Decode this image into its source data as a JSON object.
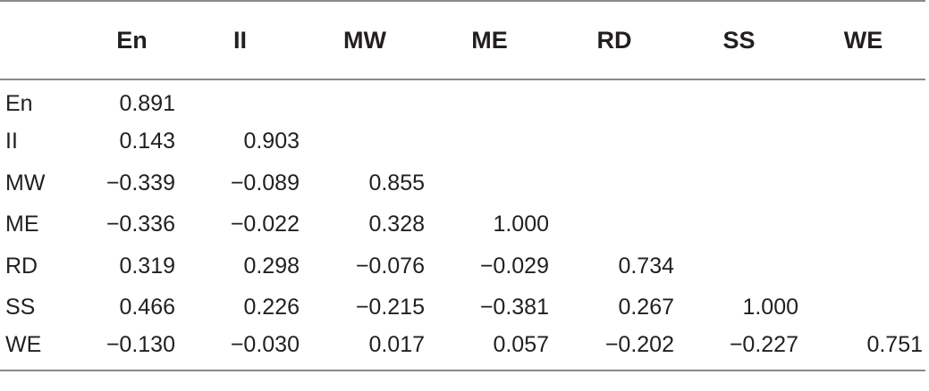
{
  "table": {
    "header": [
      "",
      "En",
      "II",
      "MW",
      "ME",
      "RD",
      "SS",
      "WE"
    ],
    "rows": [
      {
        "label": "En",
        "cells": [
          "0.891",
          "",
          "",
          "",
          "",
          "",
          ""
        ]
      },
      {
        "label": "II",
        "cells": [
          "0.143",
          "0.903",
          "",
          "",
          "",
          "",
          ""
        ]
      },
      {
        "label": "MW",
        "cells": [
          "−0.339",
          "−0.089",
          "0.855",
          "",
          "",
          "",
          ""
        ]
      },
      {
        "label": "ME",
        "cells": [
          "−0.336",
          "−0.022",
          "0.328",
          "1.000",
          "",
          "",
          ""
        ]
      },
      {
        "label": "RD",
        "cells": [
          "0.319",
          "0.298",
          "−0.076",
          "−0.029",
          "0.734",
          "",
          ""
        ]
      },
      {
        "label": "SS",
        "cells": [
          "0.466",
          "0.226",
          "−0.215",
          "−0.381",
          "0.267",
          "1.000",
          ""
        ]
      },
      {
        "label": "WE",
        "cells": [
          "−0.130",
          "−0.030",
          "0.017",
          "0.057",
          "−0.202",
          "−0.227",
          "0.751"
        ]
      }
    ]
  }
}
